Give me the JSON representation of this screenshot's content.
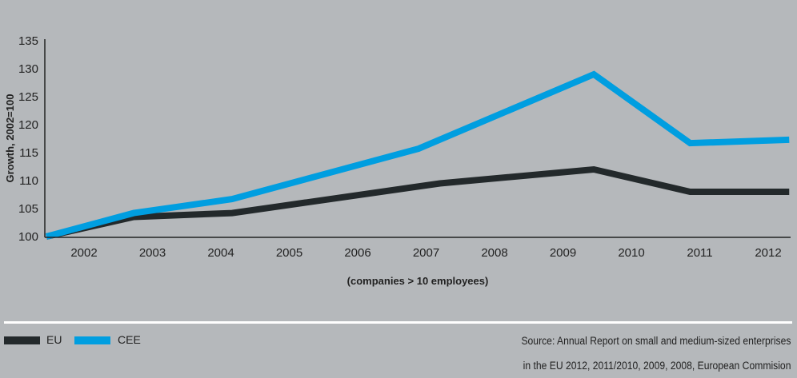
{
  "chart_data": {
    "type": "line",
    "title": "",
    "xlabel": "(companies > 10 employees)",
    "ylabel": "Growth, 2002=100",
    "ylim": [
      100,
      135
    ],
    "yticks": [
      "100",
      "105",
      "110",
      "115",
      "120",
      "125",
      "130",
      "135"
    ],
    "xticks": [
      "2002",
      "2003",
      "2004",
      "2005",
      "2006",
      "2007",
      "2008",
      "2009",
      "2010",
      "2011",
      "2012"
    ],
    "xlim": [
      2001.46,
      2012.2
    ],
    "grid": false,
    "legend_position": "bottom-left",
    "series": [
      {
        "name": "EU",
        "color": "#23292b",
        "x": [
          2001.46,
          2002.72,
          2004.14,
          2007.14,
          2009.36,
          2010.75,
          2012.18
        ],
        "y": [
          100,
          103.5,
          104.2,
          109.5,
          112,
          108,
          108
        ]
      },
      {
        "name": "CEE",
        "color": "#009ee0",
        "x": [
          2001.46,
          2002.72,
          2004.14,
          2006.83,
          2009.36,
          2010.75,
          2012.18
        ],
        "y": [
          100,
          104.2,
          106.7,
          115.7,
          129,
          116.7,
          117.3
        ]
      }
    ]
  },
  "legend": {
    "eu": "EU",
    "cee": "CEE"
  },
  "source": {
    "line1": "Source: Annual Report on small and medium-sized enterprises",
    "line2": "in the EU 2012, 2011/2010, 2009, 2008, European Commision"
  }
}
